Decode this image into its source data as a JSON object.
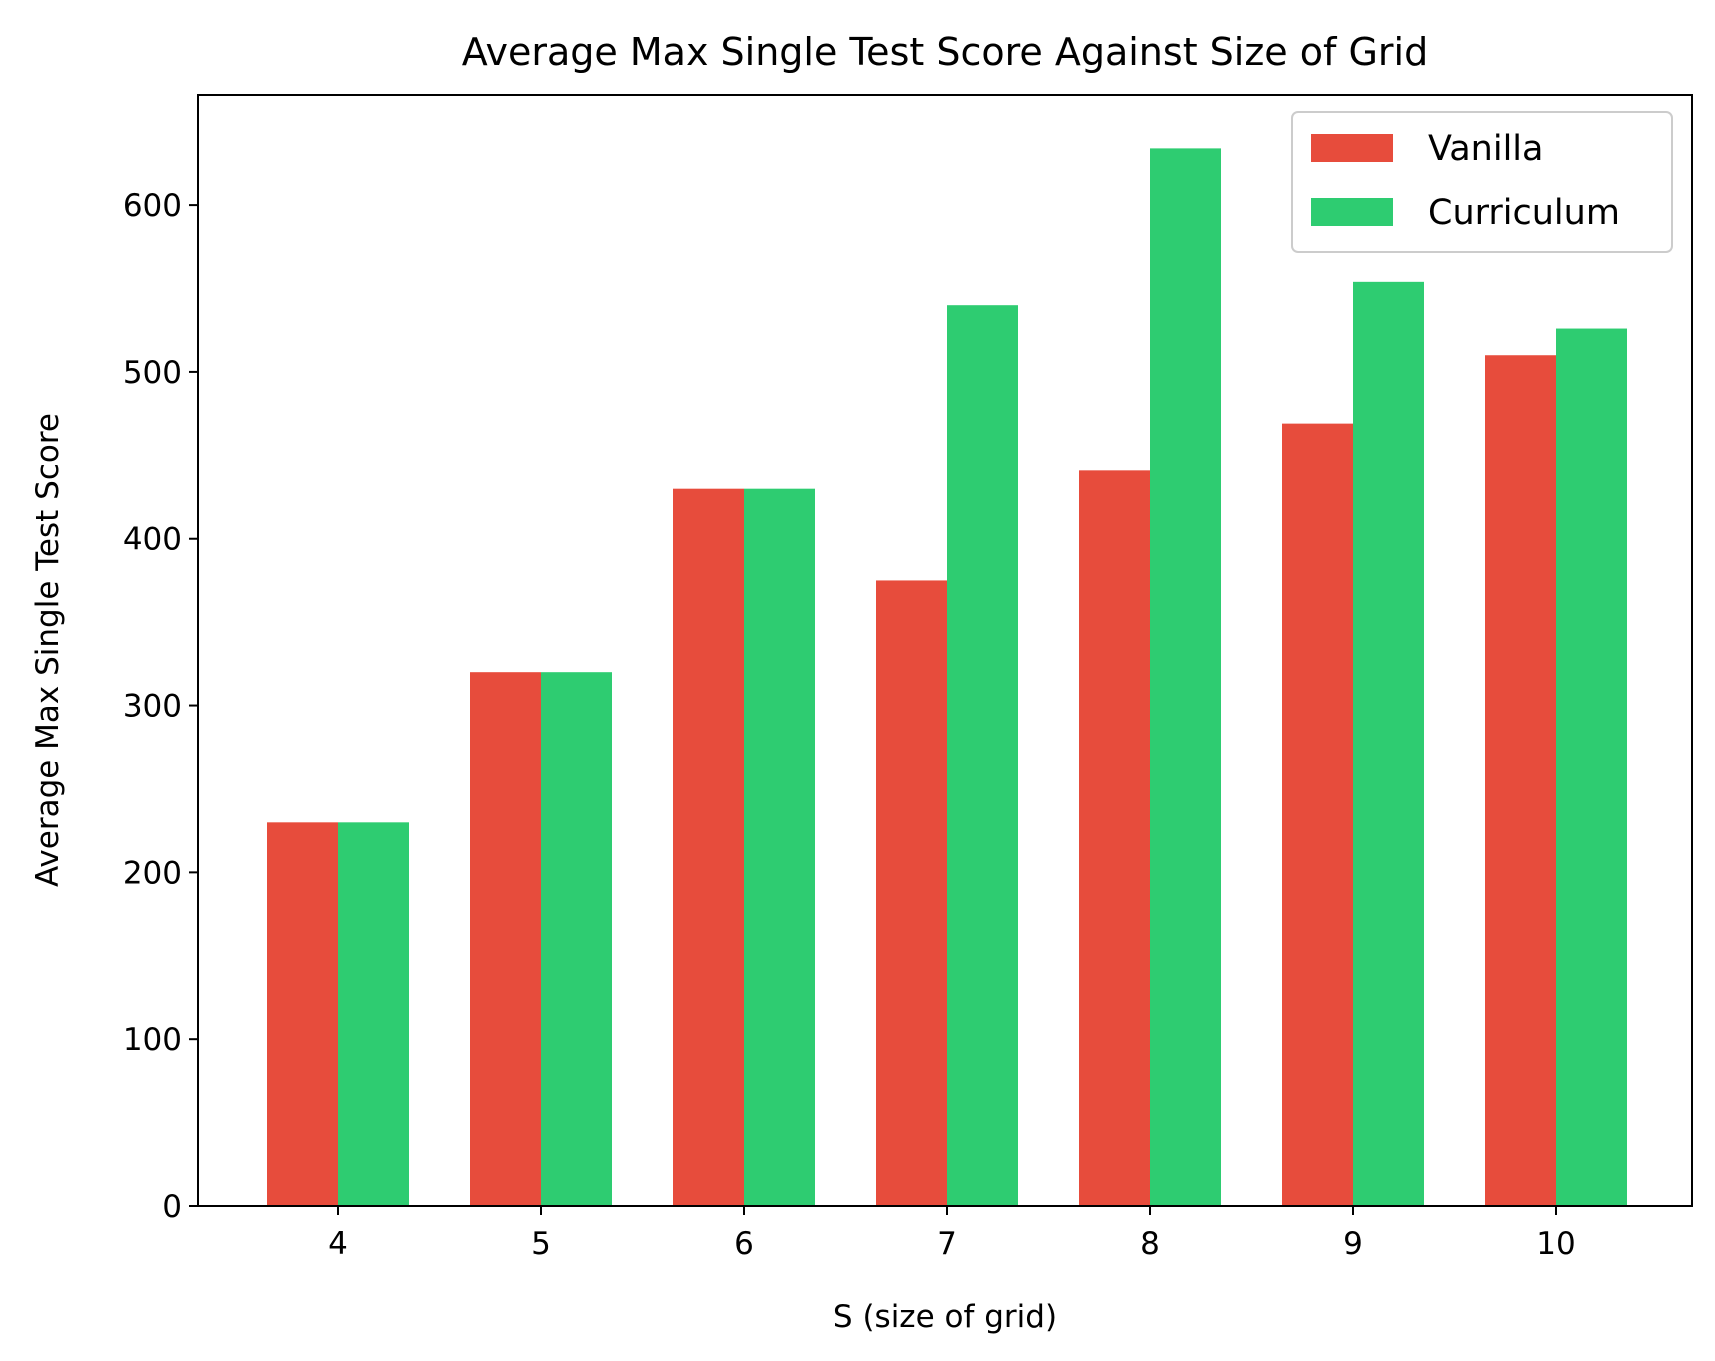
{
  "chart_data": {
    "type": "bar",
    "title": "Average Max Single Test Score Against Size of Grid",
    "xlabel": "S (size of grid)",
    "ylabel": "Average Max Single Test Score",
    "categories": [
      "4",
      "5",
      "6",
      "7",
      "8",
      "9",
      "10"
    ],
    "series": [
      {
        "name": "Vanilla",
        "color": "#e74c3c",
        "values": [
          230,
          320,
          430,
          375,
          441,
          469,
          510
        ]
      },
      {
        "name": "Curriculum",
        "color": "#2ecc71",
        "values": [
          230,
          320,
          430,
          540,
          634,
          554,
          526
        ]
      }
    ],
    "ylim": [
      0,
      666
    ],
    "yticks": [
      0,
      100,
      200,
      300,
      400,
      500,
      600
    ],
    "grid": false,
    "legend_position": "top-right"
  }
}
